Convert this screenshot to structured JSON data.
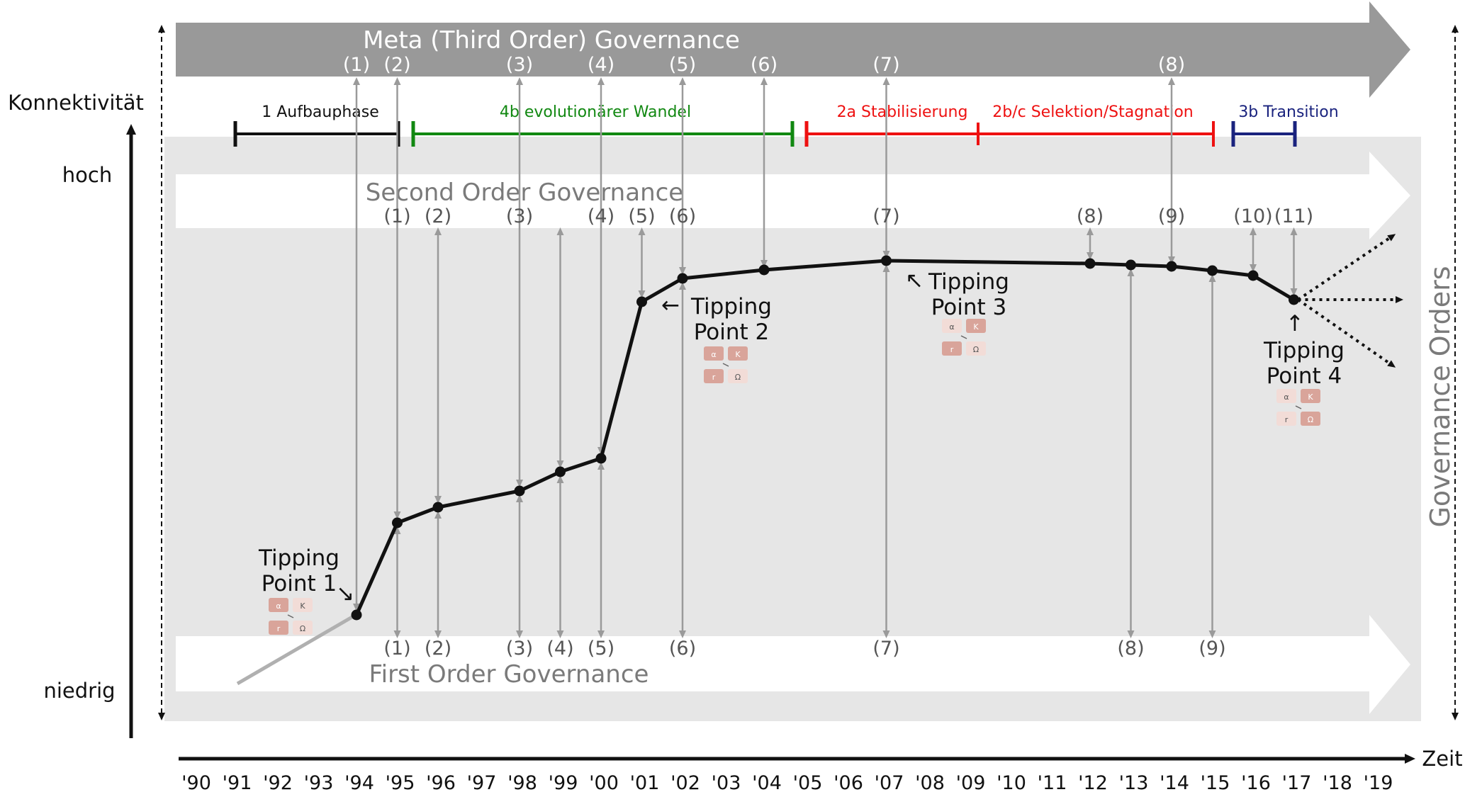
{
  "labels": {
    "meta": "Meta (Third Order) Governance",
    "second": "Second Order Governance",
    "first": "First Order Governance",
    "governance_orders": "Governance Orders",
    "y_axis": "Konnektivität",
    "y_high": "hoch",
    "y_low": "niedrig",
    "x_axis": "Zeit"
  },
  "years": [
    "'90",
    "'91",
    "'92",
    "'93",
    "'94",
    "'95",
    "'96",
    "'97",
    "'98",
    "'99",
    "'00",
    "'01",
    "'02",
    "'03",
    "'04",
    "'05",
    "'06",
    "'07",
    "'08",
    "'09",
    "'10",
    "'11",
    "'12",
    "'13",
    "'14",
    "'15",
    "'16",
    "'17",
    "'18",
    "'19"
  ],
  "phases": [
    {
      "label": "1 Aufbauphase",
      "color": "#111111"
    },
    {
      "label": "4b evolutionärer Wandel",
      "color": "#118811"
    },
    {
      "label": "2a Stabilisierung",
      "color": "#ee1111"
    },
    {
      "label": "2b/c Selektion/Stagnation",
      "color": "#ee1111"
    },
    {
      "label": "3b Transition",
      "color": "#1a237e"
    }
  ],
  "meta_marks": [
    "(1)",
    "(2)",
    "(3)",
    "(4)",
    "(5)",
    "(6)",
    "(7)",
    "(8)"
  ],
  "second_marks": [
    "(1)",
    "(2)",
    "(3)",
    "(4)",
    "(5)",
    "(6)",
    "(7)",
    "(8)",
    "(9)",
    "(10)",
    "(11)"
  ],
  "first_marks": [
    "(1)",
    "(2)",
    "(3)",
    "(4)",
    "(5)",
    "(6)",
    "(7)",
    "(8)",
    "(9)"
  ],
  "tipping_points": [
    {
      "line1": "Tipping",
      "line2": "Point 1"
    },
    {
      "line1": "Tipping",
      "line2": "Point 2"
    },
    {
      "line1": "Tipping",
      "line2": "Point 3"
    },
    {
      "line1": "Tipping",
      "line2": "Point 4"
    }
  ],
  "cycle_icon": {
    "alpha": "α",
    "kappa": "K",
    "r": "r",
    "omega": "Ω"
  }
}
